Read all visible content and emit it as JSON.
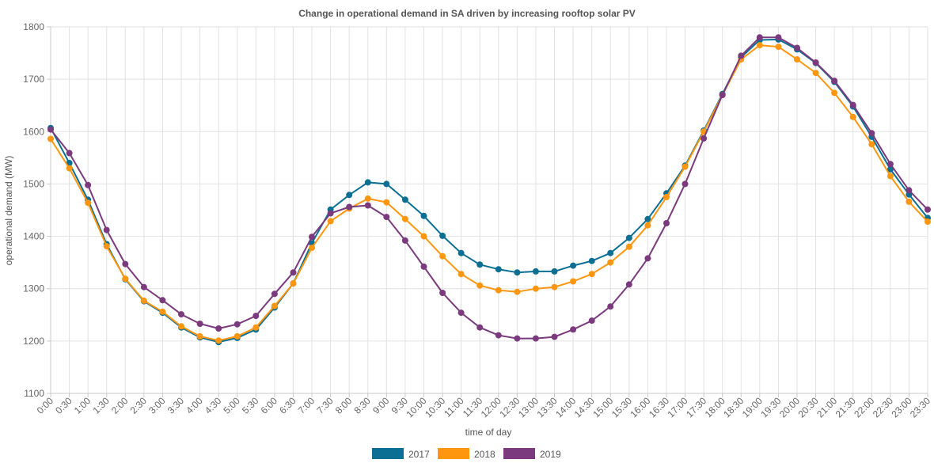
{
  "chart_data": {
    "type": "line",
    "title": "Change in operational demand in SA driven by increasing rooftop solar PV",
    "xlabel": "time of day",
    "ylabel": "operational demand (MW)",
    "ylim": [
      1100,
      1800
    ],
    "yticks": [
      1100,
      1200,
      1300,
      1400,
      1500,
      1600,
      1700,
      1800
    ],
    "grid": true,
    "legend_position": "bottom",
    "categories": [
      "0:00",
      "0:30",
      "1:00",
      "1:30",
      "2:00",
      "2:30",
      "3:00",
      "3:30",
      "4:00",
      "4:30",
      "5:00",
      "5:30",
      "6:00",
      "6:30",
      "7:00",
      "7:30",
      "8:00",
      "8:30",
      "9:00",
      "9:30",
      "10:00",
      "10:30",
      "11:00",
      "11:30",
      "12:00",
      "12:30",
      "13:00",
      "13:30",
      "14:00",
      "14:30",
      "15:00",
      "15:30",
      "16:00",
      "16:30",
      "17:00",
      "17:30",
      "18:00",
      "18:30",
      "19:00",
      "19:30",
      "20:00",
      "20:30",
      "21:00",
      "21:30",
      "22:00",
      "22:30",
      "23:00",
      "23:30"
    ],
    "series": [
      {
        "name": "2017",
        "color": "#0a6f92",
        "values": [
          1607,
          1540,
          1470,
          1385,
          1318,
          1276,
          1254,
          1226,
          1207,
          1198,
          1206,
          1222,
          1264,
          1310,
          1387,
          1451,
          1479,
          1503,
          1500,
          1470,
          1439,
          1401,
          1368,
          1346,
          1337,
          1331,
          1333,
          1333,
          1344,
          1353,
          1368,
          1397,
          1433,
          1482,
          1535,
          1602,
          1672,
          1742,
          1775,
          1776,
          1757,
          1731,
          1695,
          1648,
          1590,
          1528,
          1480,
          1435
        ]
      },
      {
        "name": "2018",
        "color": "#ff9610",
        "values": [
          1586,
          1530,
          1464,
          1381,
          1319,
          1277,
          1256,
          1228,
          1209,
          1201,
          1209,
          1226,
          1267,
          1310,
          1378,
          1429,
          1453,
          1472,
          1465,
          1433,
          1400,
          1362,
          1328,
          1306,
          1297,
          1294,
          1300,
          1303,
          1314,
          1328,
          1350,
          1380,
          1421,
          1475,
          1533,
          1600,
          1670,
          1738,
          1765,
          1762,
          1738,
          1712,
          1674,
          1628,
          1576,
          1515,
          1466,
          1428
        ]
      },
      {
        "name": "2019",
        "color": "#7a3a7d",
        "values": [
          1604,
          1559,
          1498,
          1412,
          1347,
          1303,
          1278,
          1251,
          1233,
          1224,
          1232,
          1248,
          1290,
          1331,
          1399,
          1444,
          1456,
          1459,
          1437,
          1392,
          1342,
          1292,
          1254,
          1226,
          1211,
          1205,
          1205,
          1208,
          1222,
          1239,
          1266,
          1308,
          1358,
          1425,
          1500,
          1587,
          1670,
          1745,
          1780,
          1780,
          1760,
          1732,
          1697,
          1651,
          1597,
          1538,
          1488,
          1451
        ]
      }
    ]
  }
}
